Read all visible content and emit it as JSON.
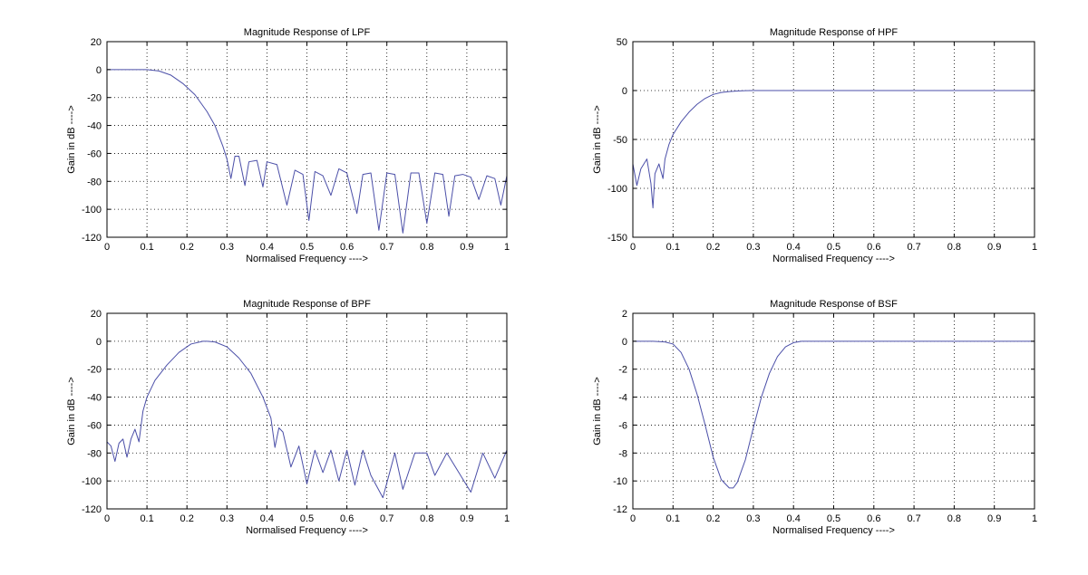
{
  "colors": {
    "line": "#4b4fa8",
    "axes": "#000000",
    "grid": "#000000",
    "background": "#ffffff"
  },
  "chart_data": [
    {
      "type": "line",
      "title": "Magnitude Response of LPF",
      "xlabel": "Normalised Frequency ---->",
      "ylabel": "Gain in dB ---->",
      "xlim": [
        0,
        1
      ],
      "ylim": [
        -120,
        20
      ],
      "xticks": [
        0,
        0.1,
        0.2,
        0.3,
        0.4,
        0.5,
        0.6,
        0.7,
        0.8,
        0.9,
        1
      ],
      "xtick_labels": [
        "0",
        "0.1",
        "0.2",
        "0.3",
        "0.4",
        "0.5",
        "0.6",
        "0.7",
        "0.8",
        "0.9",
        "1"
      ],
      "yticks": [
        20,
        0,
        -20,
        -40,
        -60,
        -80,
        -100,
        -120
      ],
      "ytick_labels": [
        "20",
        "0",
        "-20",
        "-40",
        "-60",
        "-80",
        "-100",
        "-120"
      ],
      "grid": true,
      "series": [
        {
          "x": [
            0,
            0.05,
            0.1,
            0.13,
            0.16,
            0.19,
            0.22,
            0.25,
            0.27,
            0.29,
            0.3,
            0.31,
            0.32,
            0.33,
            0.345,
            0.355,
            0.375,
            0.39,
            0.4,
            0.425,
            0.45,
            0.47,
            0.49,
            0.505,
            0.52,
            0.54,
            0.56,
            0.58,
            0.6,
            0.625,
            0.64,
            0.66,
            0.68,
            0.7,
            0.72,
            0.74,
            0.76,
            0.78,
            0.8,
            0.82,
            0.84,
            0.855,
            0.87,
            0.89,
            0.91,
            0.93,
            0.95,
            0.97,
            0.985,
            1
          ],
          "y": [
            0,
            0,
            0,
            -1,
            -4,
            -10,
            -18,
            -30,
            -40,
            -55,
            -64,
            -78,
            -62,
            -62,
            -83,
            -66,
            -65,
            -84,
            -66,
            -68,
            -97,
            -72,
            -75,
            -108,
            -73,
            -76,
            -90,
            -71,
            -74,
            -103,
            -75,
            -74,
            -115,
            -74,
            -75,
            -117,
            -74,
            -74,
            -110,
            -74,
            -75,
            -105,
            -76,
            -75,
            -77,
            -93,
            -76,
            -78,
            -97,
            -76
          ]
        }
      ]
    },
    {
      "type": "line",
      "title": "Magnitude Response of HPF",
      "xlabel": "Normalised Frequency ---->",
      "ylabel": "Gain in dB ---->",
      "xlim": [
        0,
        1
      ],
      "ylim": [
        -150,
        50
      ],
      "xticks": [
        0,
        0.1,
        0.2,
        0.3,
        0.4,
        0.5,
        0.6,
        0.7,
        0.8,
        0.9,
        1
      ],
      "xtick_labels": [
        "0",
        "0.1",
        "0.2",
        "0.3",
        "0.4",
        "0.5",
        "0.6",
        "0.7",
        "0.8",
        "0.9",
        "1"
      ],
      "yticks": [
        50,
        0,
        -50,
        -100,
        -150
      ],
      "ytick_labels": [
        "50",
        "0",
        "-50",
        "-100",
        "-150"
      ],
      "grid": true,
      "series": [
        {
          "x": [
            0,
            0.01,
            0.02,
            0.035,
            0.045,
            0.05,
            0.055,
            0.065,
            0.075,
            0.08,
            0.09,
            0.1,
            0.12,
            0.14,
            0.16,
            0.18,
            0.2,
            0.22,
            0.24,
            0.26,
            0.28,
            0.3,
            0.5,
            0.7,
            1
          ],
          "y": [
            -75,
            -97,
            -80,
            -70,
            -95,
            -120,
            -85,
            -75,
            -90,
            -70,
            -55,
            -45,
            -32,
            -22,
            -14,
            -8,
            -4,
            -2,
            -1,
            -0.5,
            -0.1,
            0,
            0,
            0,
            0
          ]
        }
      ]
    },
    {
      "type": "line",
      "title": "Magnitude Response of BPF",
      "xlabel": "Normalised Frequency ---->",
      "ylabel": "Gain in dB ---->",
      "xlim": [
        0,
        1
      ],
      "ylim": [
        -120,
        20
      ],
      "xticks": [
        0,
        0.1,
        0.2,
        0.3,
        0.4,
        0.5,
        0.6,
        0.7,
        0.8,
        0.9,
        1
      ],
      "xtick_labels": [
        "0",
        "0.1",
        "0.2",
        "0.3",
        "0.4",
        "0.5",
        "0.6",
        "0.7",
        "0.8",
        "0.9",
        "1"
      ],
      "yticks": [
        20,
        0,
        -20,
        -40,
        -60,
        -80,
        -100,
        -120
      ],
      "ytick_labels": [
        "20",
        "0",
        "-20",
        "-40",
        "-60",
        "-80",
        "-100",
        "-120"
      ],
      "grid": true,
      "series": [
        {
          "x": [
            0,
            0.01,
            0.02,
            0.03,
            0.04,
            0.05,
            0.06,
            0.07,
            0.08,
            0.09,
            0.1,
            0.12,
            0.15,
            0.18,
            0.21,
            0.24,
            0.25,
            0.27,
            0.3,
            0.33,
            0.36,
            0.39,
            0.41,
            0.42,
            0.43,
            0.44,
            0.46,
            0.48,
            0.5,
            0.52,
            0.54,
            0.56,
            0.58,
            0.6,
            0.62,
            0.64,
            0.66,
            0.69,
            0.72,
            0.74,
            0.77,
            0.8,
            0.82,
            0.85,
            0.88,
            0.91,
            0.94,
            0.97,
            1
          ],
          "y": [
            -72,
            -75,
            -86,
            -73,
            -70,
            -83,
            -70,
            -63,
            -72,
            -50,
            -40,
            -28,
            -17,
            -8,
            -2,
            0,
            0,
            -0.5,
            -4,
            -12,
            -23,
            -40,
            -55,
            -76,
            -62,
            -65,
            -90,
            -75,
            -102,
            -78,
            -94,
            -78,
            -100,
            -78,
            -103,
            -78,
            -96,
            -112,
            -80,
            -106,
            -80,
            -80,
            -96,
            -80,
            -94,
            -108,
            -80,
            -98,
            -78
          ]
        }
      ]
    },
    {
      "type": "line",
      "title": "Magnitude Response of BSF",
      "xlabel": "Normalised Frequency ---->",
      "ylabel": "Gain in dB ---->",
      "xlim": [
        0,
        1
      ],
      "ylim": [
        -12,
        2
      ],
      "xticks": [
        0,
        0.1,
        0.2,
        0.3,
        0.4,
        0.5,
        0.6,
        0.7,
        0.8,
        0.9,
        1
      ],
      "xtick_labels": [
        "0",
        "0.1",
        "0.2",
        "0.3",
        "0.4",
        "0.5",
        "0.6",
        "0.7",
        "0.8",
        "0.9",
        "1"
      ],
      "yticks": [
        2,
        0,
        -2,
        -4,
        -6,
        -8,
        -10,
        -12
      ],
      "ytick_labels": [
        "2",
        "0",
        "-2",
        "-4",
        "-6",
        "-8",
        "-10",
        "-12"
      ],
      "grid": true,
      "series": [
        {
          "x": [
            0,
            0.05,
            0.08,
            0.1,
            0.12,
            0.14,
            0.16,
            0.18,
            0.2,
            0.22,
            0.24,
            0.25,
            0.26,
            0.28,
            0.3,
            0.32,
            0.34,
            0.36,
            0.38,
            0.4,
            0.42,
            0.45,
            0.6,
            0.8,
            1
          ],
          "y": [
            0,
            0,
            -0.05,
            -0.2,
            -0.8,
            -2.0,
            -3.8,
            -6.0,
            -8.3,
            -9.9,
            -10.5,
            -10.5,
            -10.1,
            -8.5,
            -6.2,
            -4.0,
            -2.3,
            -1.1,
            -0.4,
            -0.1,
            0,
            0,
            0,
            0,
            0
          ]
        }
      ]
    }
  ]
}
